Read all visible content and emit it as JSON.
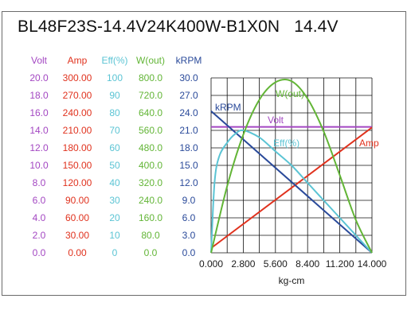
{
  "title": "BL48F23S-14.4V24K400W-B1X0N",
  "voltage_label": "14.4V",
  "colors": {
    "volt": "#a347c2",
    "amp": "#e0321e",
    "eff": "#5bc4d4",
    "wout": "#62b536",
    "krpm": "#2a4a9a",
    "axis_text": "#1a1a1a"
  },
  "chart_data": {
    "type": "line",
    "xlabel": "kg-cm",
    "xlim": [
      0,
      14
    ],
    "x_ticks": [
      "0.000",
      "2.800",
      "5.600",
      "8.400",
      "11.200",
      "14.000"
    ],
    "grid": true,
    "axes": [
      {
        "key": "volt",
        "label": "Volt",
        "ylim": [
          0,
          20
        ],
        "ticks": [
          "0.0",
          "2.0",
          "4.0",
          "6.0",
          "8.0",
          "10.0",
          "12.0",
          "14.0",
          "16.0",
          "18.0",
          "20.0"
        ]
      },
      {
        "key": "amp",
        "label": "Amp",
        "ylim": [
          0,
          300
        ],
        "ticks": [
          "0.00",
          "30.00",
          "60.00",
          "90.00",
          "120.00",
          "150.00",
          "180.00",
          "210.00",
          "240.00",
          "270.00",
          "300.00"
        ]
      },
      {
        "key": "eff",
        "label": "Eff(%)",
        "ylim": [
          0,
          100
        ],
        "ticks": [
          "0",
          "10",
          "20",
          "30",
          "40",
          "50",
          "60",
          "70",
          "80",
          "90",
          "100"
        ]
      },
      {
        "key": "wout",
        "label": "W(out)",
        "ylim": [
          0,
          800
        ],
        "ticks": [
          "0.0",
          "80.0",
          "160.0",
          "240.0",
          "320.0",
          "400.0",
          "480.0",
          "560.0",
          "640.0",
          "720.0",
          "800.0"
        ]
      },
      {
        "key": "krpm",
        "label": "kRPM",
        "ylim": [
          0,
          30
        ],
        "ticks": [
          "0.0",
          "3.0",
          "6.0",
          "9.0",
          "12.0",
          "15.0",
          "18.0",
          "21.0",
          "24.0",
          "27.0",
          "30.0"
        ]
      }
    ],
    "series": [
      {
        "name": "Volt",
        "axis": "volt",
        "x": [
          0,
          14
        ],
        "values": [
          14.4,
          14.4
        ]
      },
      {
        "name": "Amp",
        "axis": "amp",
        "x": [
          0,
          14
        ],
        "values": [
          8,
          215
        ]
      },
      {
        "name": "kRPM",
        "axis": "krpm",
        "x": [
          0,
          14
        ],
        "values": [
          24.3,
          0
        ]
      },
      {
        "name": "Eff(%)",
        "axis": "eff",
        "x": [
          0,
          0.3,
          0.7,
          1.4,
          2.1,
          2.8,
          4.2,
          5.6,
          7.0,
          8.4,
          9.8,
          11.2,
          12.6,
          14.0
        ],
        "values": [
          0,
          40,
          55,
          63,
          68,
          70,
          66,
          58,
          50,
          40,
          30,
          20,
          10,
          0
        ]
      },
      {
        "name": "W(out)",
        "axis": "wout",
        "x": [
          0,
          1.4,
          2.8,
          4.2,
          5.6,
          7.0,
          8.4,
          9.8,
          11.2,
          12.6,
          14.0
        ],
        "values": [
          0,
          305,
          540,
          700,
          780,
          785,
          705,
          555,
          355,
          150,
          0
        ]
      }
    ]
  }
}
